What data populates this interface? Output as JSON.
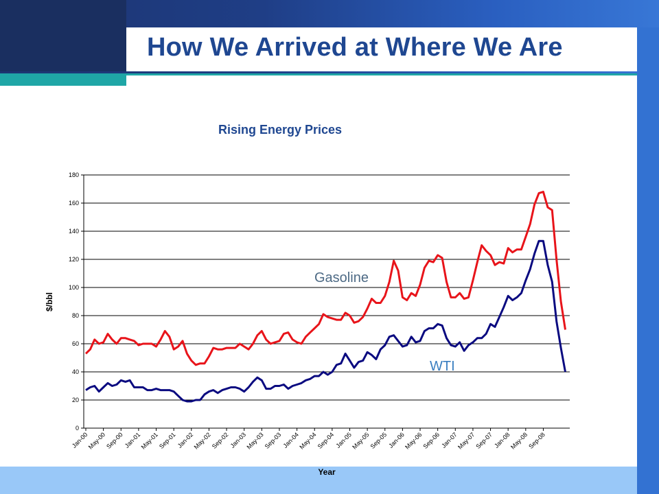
{
  "slide": {
    "title": "How We Arrived at Where We Are"
  },
  "colors": {
    "title_text": "#1f4791",
    "top_band": "#1f3e86",
    "teal_accent": "#1fa6a6",
    "right_bar": "#3372d2",
    "bottom_band": "#99c8f8",
    "gasoline_line": "#e8141a",
    "wti_line": "#0a0a80",
    "gasoline_label": "#4d6a85",
    "wti_label": "#3a7ec0"
  },
  "chart_data": {
    "type": "line",
    "title": "Rising Energy Prices",
    "xlabel": "Year",
    "ylabel": "$/bbl",
    "ylim": [
      0,
      180
    ],
    "yticks": [
      0,
      20,
      40,
      60,
      80,
      100,
      120,
      140,
      160,
      180
    ],
    "grid": true,
    "legend": "none (inline series labels)",
    "x_tick_labels": [
      "Jan-00",
      "May-00",
      "Sep-00",
      "Jan-01",
      "May-01",
      "Sep-01",
      "Jan-02",
      "May-02",
      "Sep-02",
      "Jan-03",
      "May-03",
      "Sep-03",
      "Jan-04",
      "May-04",
      "Sep-04",
      "Jan-05",
      "May-05",
      "Sep-05",
      "Jan-06",
      "May-06",
      "Sep-06",
      "Jan-07",
      "May-07",
      "Sep-07",
      "Jan-08",
      "May-08",
      "Sep-08"
    ],
    "series": [
      {
        "name": "Gasoline",
        "values": [
          53,
          56,
          63,
          60,
          61,
          67,
          63,
          60,
          64,
          64,
          63,
          62,
          59,
          60,
          60,
          60,
          58,
          63,
          69,
          65,
          56,
          58,
          62,
          53,
          48,
          45,
          46,
          46,
          51,
          57,
          56,
          56,
          57,
          57,
          57,
          60,
          58,
          56,
          60,
          66,
          69,
          63,
          60,
          61,
          62,
          67,
          68,
          63,
          61,
          60,
          65,
          68,
          71,
          74,
          81,
          79,
          78,
          77,
          77,
          82,
          80,
          75,
          76,
          79,
          85,
          92,
          89,
          89,
          94,
          104,
          119,
          112,
          93,
          91,
          96,
          94,
          102,
          114,
          119,
          118,
          123,
          121,
          104,
          93,
          93,
          96,
          92,
          93,
          105,
          118,
          130,
          126,
          123,
          116,
          118,
          117,
          128,
          125,
          127,
          127,
          136,
          145,
          159,
          167,
          168,
          157,
          155,
          120,
          90,
          70
        ]
      },
      {
        "name": "WTI",
        "values": [
          27,
          29,
          30,
          26,
          29,
          32,
          30,
          31,
          34,
          33,
          34,
          29,
          29,
          29,
          27,
          27,
          28,
          27,
          27,
          27,
          26,
          23,
          20,
          19,
          19,
          20,
          20,
          24,
          26,
          27,
          25,
          27,
          28,
          29,
          29,
          28,
          26,
          29,
          33,
          36,
          34,
          28,
          28,
          30,
          30,
          31,
          28,
          30,
          31,
          32,
          34,
          35,
          37,
          37,
          40,
          38,
          40,
          45,
          46,
          53,
          48,
          43,
          47,
          48,
          54,
          52,
          49,
          56,
          59,
          65,
          66,
          62,
          58,
          59,
          65,
          61,
          62,
          69,
          71,
          71,
          74,
          73,
          64,
          59,
          58,
          61,
          55,
          59,
          61,
          64,
          64,
          67,
          74,
          72,
          79,
          86,
          94,
          91,
          93,
          96,
          105,
          113,
          124,
          133,
          133,
          116,
          104,
          76,
          57,
          40
        ]
      }
    ]
  }
}
